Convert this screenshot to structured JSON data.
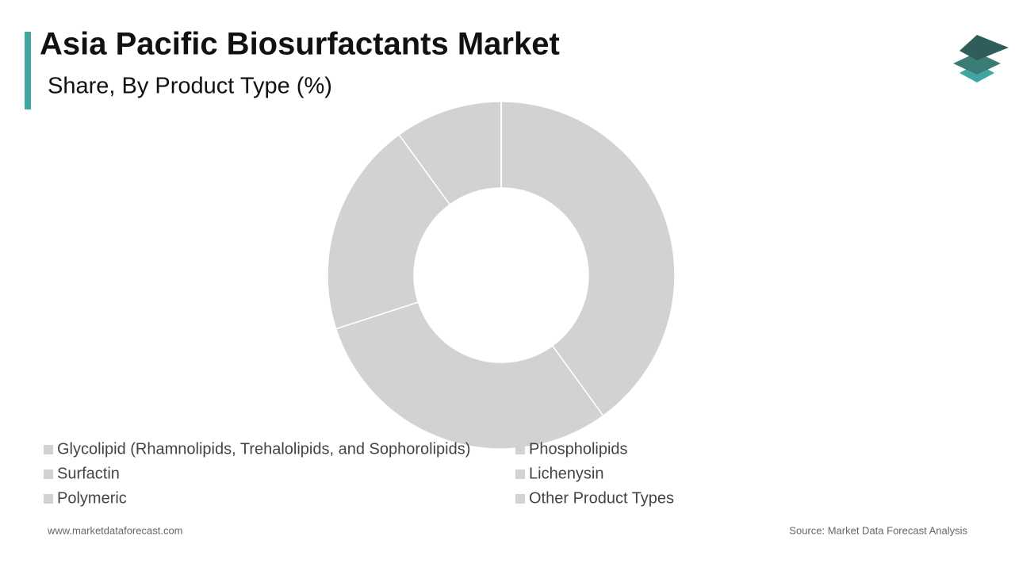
{
  "chart_data": {
    "type": "donut",
    "title": "Asia Pacific Biosurfactants Market",
    "subtitle": "Share, By Product Type (%)",
    "categories": [
      "Glycolipid (Rhamnolipids, Trehalolipids, and Sophorolipids)",
      "Phospholipids",
      "Surfactin",
      "Lichenysin",
      "Polymeric",
      "Other Product Types"
    ],
    "values": [
      40,
      30,
      20,
      10,
      0,
      0
    ],
    "colors": [
      "#d3d2d3",
      "#d3d2d3",
      "#d3d2d3",
      "#d3d2d3",
      "#d3d2d3",
      "#d3d2d3"
    ]
  },
  "footer": {
    "website": "www.marketdataforecast.com",
    "source": "Source: Market Data Forecast Analysis"
  }
}
